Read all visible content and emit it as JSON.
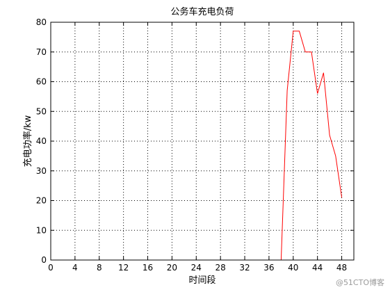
{
  "chart_data": {
    "type": "line",
    "title": "公务车充电负荷",
    "xlabel": "时间段",
    "ylabel": "充电功率/kw",
    "xlim": [
      0,
      50
    ],
    "ylim": [
      0,
      80
    ],
    "xticks": [
      0,
      4,
      8,
      12,
      16,
      20,
      24,
      28,
      32,
      36,
      40,
      44,
      48
    ],
    "yticks": [
      0,
      10,
      20,
      30,
      40,
      50,
      60,
      70,
      80
    ],
    "grid": true,
    "grid_style": "dotted",
    "series": [
      {
        "color": "#ff0000",
        "x": [
          38,
          39,
          40,
          41,
          42,
          43,
          44,
          45,
          46,
          47,
          48
        ],
        "y": [
          0,
          57,
          77,
          77,
          70,
          70,
          56,
          63,
          42,
          35,
          21
        ]
      }
    ]
  },
  "watermark": "@51CTO博客"
}
